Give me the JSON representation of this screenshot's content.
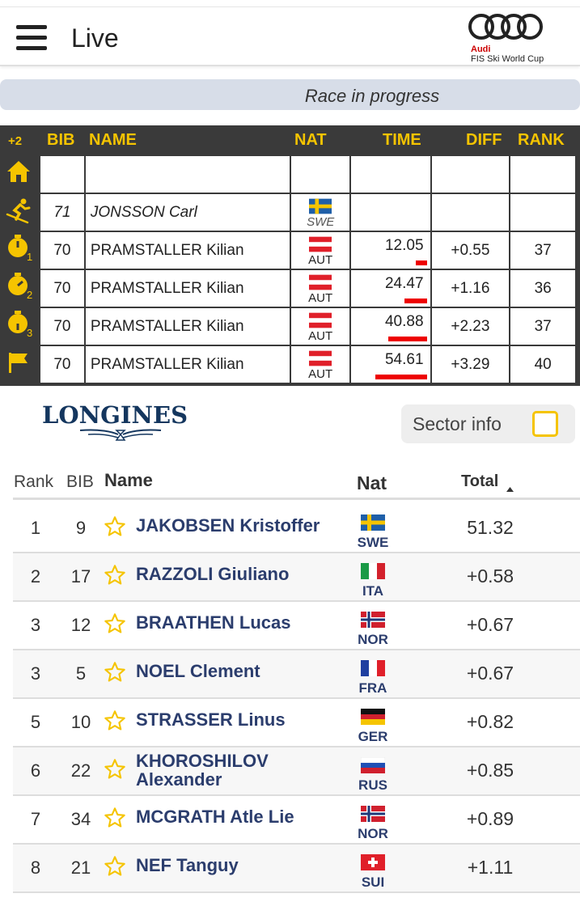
{
  "header": {
    "title": "Live",
    "brand": "Audi",
    "brand_sub": "FIS Ski World Cup"
  },
  "status": {
    "text": "Race in progress"
  },
  "live_table": {
    "headers": {
      "plus": "+2",
      "bib": "BIB",
      "name": "NAME",
      "nat": "NAT",
      "time": "TIME",
      "diff": "DIFF",
      "rank": "RANK"
    },
    "side_icons": [
      "home-icon",
      "skier-icon",
      "stopwatch-1-icon",
      "stopwatch-2-icon",
      "stopwatch-3-icon",
      "finish-flag-icon"
    ],
    "rows": [
      {
        "bib": "",
        "name": "",
        "nat": "",
        "time": "",
        "diff": "",
        "rank": ""
      },
      {
        "bib": "71",
        "name": "JONSSON Carl",
        "nat": "SWE",
        "time": "",
        "diff": "",
        "rank": "",
        "italic": true
      },
      {
        "bib": "70",
        "name": "PRAMSTALLER Kilian",
        "nat": "AUT",
        "time": "12.05",
        "diff": "+0.55",
        "rank": "37",
        "bar": 0.2
      },
      {
        "bib": "70",
        "name": "PRAMSTALLER Kilian",
        "nat": "AUT",
        "time": "24.47",
        "diff": "+1.16",
        "rank": "36",
        "bar": 0.4
      },
      {
        "bib": "70",
        "name": "PRAMSTALLER Kilian",
        "nat": "AUT",
        "time": "40.88",
        "diff": "+2.23",
        "rank": "37",
        "bar": 0.68
      },
      {
        "bib": "70",
        "name": "PRAMSTALLER Kilian",
        "nat": "AUT",
        "time": "54.61",
        "diff": "+3.29",
        "rank": "40",
        "bar": 0.92
      }
    ]
  },
  "sponsor": {
    "name": "LONGINES"
  },
  "sector": {
    "label": "Sector info",
    "checked": false
  },
  "results": {
    "headers": {
      "rank": "Rank",
      "bib": "BIB",
      "name": "Name",
      "nat": "Nat",
      "total": "Total"
    },
    "rows": [
      {
        "rank": "1",
        "bib": "9",
        "name": "JAKOBSEN Kristoffer",
        "nat": "SWE",
        "total": "51.32"
      },
      {
        "rank": "2",
        "bib": "17",
        "name": "RAZZOLI Giuliano",
        "nat": "ITA",
        "total": "+0.58"
      },
      {
        "rank": "3",
        "bib": "12",
        "name": "BRAATHEN Lucas",
        "nat": "NOR",
        "total": "+0.67"
      },
      {
        "rank": "3",
        "bib": "5",
        "name": "NOEL Clement",
        "nat": "FRA",
        "total": "+0.67"
      },
      {
        "rank": "5",
        "bib": "10",
        "name": "STRASSER Linus",
        "nat": "GER",
        "total": "+0.82"
      },
      {
        "rank": "6",
        "bib": "22",
        "name": "KHOROSHILOV Alexander",
        "nat": "RUS",
        "total": "+0.85"
      },
      {
        "rank": "7",
        "bib": "34",
        "name": "MCGRATH Atle Lie",
        "nat": "NOR",
        "total": "+0.89"
      },
      {
        "rank": "8",
        "bib": "21",
        "name": "NEF Tanguy",
        "nat": "SUI",
        "total": "+1.11"
      }
    ]
  },
  "colors": {
    "accent": "#f5c400",
    "diff": "#e53935",
    "name": "#2b3d6d",
    "panel": "#3a3a3a"
  }
}
